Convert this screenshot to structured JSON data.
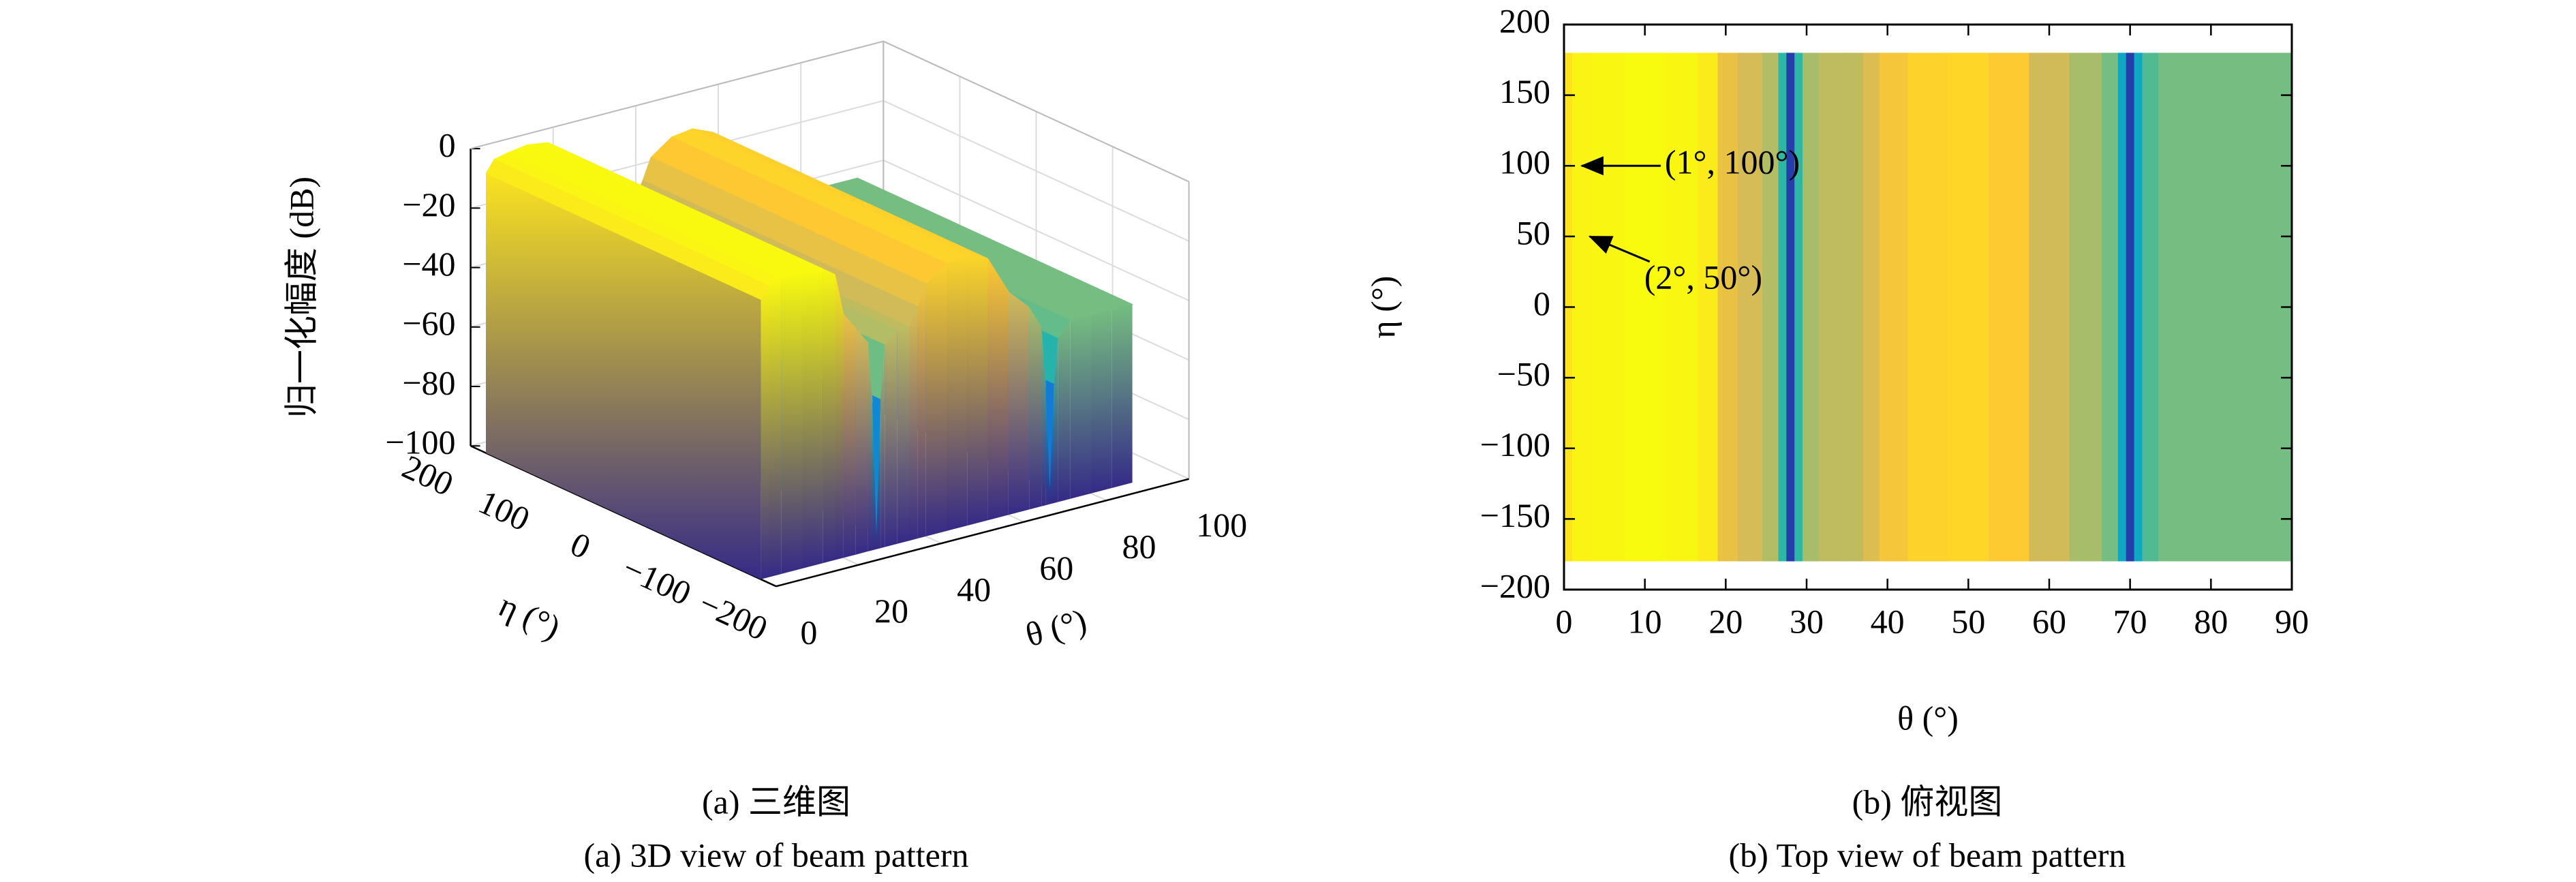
{
  "chart_data": [
    {
      "type": "surface3d",
      "xlabel": "θ (°)",
      "ylabel": "η (°)",
      "zlabel": "归一化幅度 (dB)",
      "caption": "(a) 三维图",
      "caption_en": "(a) 3D view of beam pattern",
      "x": [
        0,
        2,
        5,
        10,
        15,
        18,
        20,
        23,
        26,
        27,
        28,
        29,
        30,
        33,
        36,
        38,
        40,
        45,
        50,
        55,
        60,
        65,
        68,
        69,
        70,
        71,
        72,
        75,
        80,
        85,
        90
      ],
      "values": [
        -6,
        -2,
        -1,
        0,
        -1,
        -4,
        -18,
        -24,
        -30,
        -50,
        -95,
        -50,
        -32,
        -28,
        -28,
        -22,
        -15,
        -10,
        -9,
        -12,
        -25,
        -32,
        -40,
        -60,
        -95,
        -60,
        -45,
        -40,
        -40,
        -40,
        -40
      ],
      "y_extent": [
        -180,
        180
      ],
      "xlim": [
        0,
        100
      ],
      "ylim": [
        -200,
        200
      ],
      "zlim": [
        -100,
        0
      ],
      "xticks": [
        0,
        20,
        40,
        60,
        80,
        100
      ],
      "yticks": [
        {
          "value": -200,
          "label": "−200"
        },
        {
          "value": -100,
          "label": "−100"
        },
        0,
        100,
        200
      ],
      "zticks": [
        {
          "value": -100,
          "label": "−100"
        },
        {
          "value": -80,
          "label": "−80"
        },
        {
          "value": -60,
          "label": "−60"
        },
        {
          "value": -40,
          "label": "−40"
        },
        {
          "value": -20,
          "label": "−20"
        },
        0
      ],
      "colormap": "parula",
      "grid": true
    },
    {
      "type": "heatmap",
      "xlabel": "θ (°)",
      "ylabel": "η (°)",
      "caption": "(b) 俯视图",
      "caption_en": "(b) Top view of beam pattern",
      "x": [
        0,
        2,
        5,
        10,
        15,
        18,
        20,
        23,
        26,
        27,
        28,
        29,
        30,
        33,
        36,
        38,
        40,
        45,
        50,
        55,
        60,
        65,
        68,
        69,
        70,
        71,
        72,
        75,
        80,
        85,
        90
      ],
      "values": [
        -6,
        -2,
        -1,
        0,
        -1,
        -4,
        -18,
        -24,
        -30,
        -50,
        -95,
        -50,
        -32,
        -28,
        -28,
        -22,
        -15,
        -10,
        -9,
        -12,
        -25,
        -32,
        -40,
        -60,
        -95,
        -60,
        -45,
        -40,
        -40,
        -40,
        -40
      ],
      "y_extent": [
        -180,
        180
      ],
      "xlim": [
        0,
        90
      ],
      "ylim": [
        -200,
        200
      ],
      "xticks": [
        0,
        10,
        20,
        30,
        40,
        50,
        60,
        70,
        80,
        90
      ],
      "yticks": [
        {
          "value": -200,
          "label": "−200"
        },
        {
          "value": -150,
          "label": "−150"
        },
        {
          "value": -100,
          "label": "−100"
        },
        {
          "value": -50,
          "label": "−50"
        },
        0,
        50,
        100,
        150,
        200
      ],
      "colormap": "parula",
      "color_range": [
        -100,
        0
      ],
      "annotations": [
        {
          "text": "(1°, 100°)",
          "x": 1,
          "y": 100
        },
        {
          "text": "(2°, 50°)",
          "x": 2,
          "y": 50
        }
      ]
    }
  ]
}
